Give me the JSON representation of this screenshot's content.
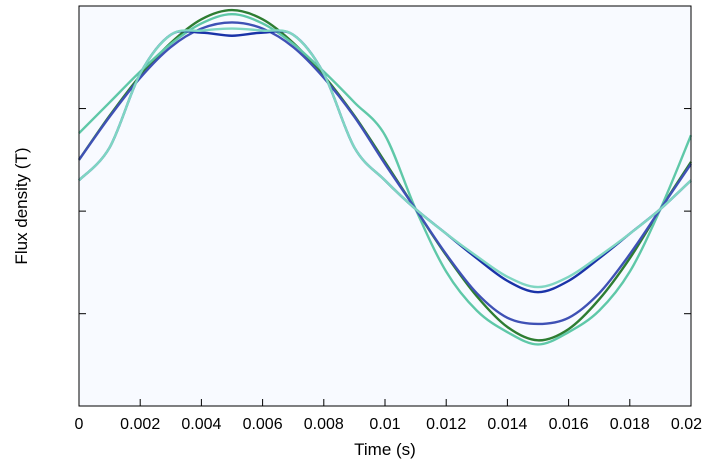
{
  "chart_data": {
    "type": "line",
    "xlabel": "Time (s)",
    "ylabel": "Flux density (T)",
    "xlim": [
      0,
      0.02
    ],
    "ylim": [
      -1.9,
      2.0
    ],
    "x_ticks": [
      {
        "value": 0,
        "label": "0"
      },
      {
        "value": 0.002,
        "label": "0.002"
      },
      {
        "value": 0.004,
        "label": "0.004"
      },
      {
        "value": 0.006,
        "label": "0.006"
      },
      {
        "value": 0.008,
        "label": "0.008"
      },
      {
        "value": 0.01,
        "label": "0.01"
      },
      {
        "value": 0.012,
        "label": "0.012"
      },
      {
        "value": 0.014,
        "label": "0.014"
      },
      {
        "value": 0.016,
        "label": "0.016"
      },
      {
        "value": 0.018,
        "label": "0.018"
      },
      {
        "value": 0.02,
        "label": "0.02"
      }
    ],
    "y_ticks_unlabeled": [
      -1,
      0,
      1
    ],
    "grid": false,
    "plot_background": "#f8faff",
    "x": [
      0,
      0.001,
      0.002,
      0.003,
      0.004,
      0.005,
      0.006,
      0.007,
      0.008,
      0.009,
      0.01,
      0.011,
      0.012,
      0.013,
      0.014,
      0.015,
      0.016,
      0.017,
      0.018,
      0.019,
      0.02
    ],
    "series": [
      {
        "color": "#2e7d32",
        "values": [
          0.5,
          0.93,
          1.32,
          1.64,
          1.87,
          1.96,
          1.87,
          1.64,
          1.32,
          0.93,
          0.48,
          0.02,
          -0.43,
          -0.83,
          -1.13,
          -1.26,
          -1.15,
          -0.86,
          -0.46,
          0.02,
          0.48
        ]
      },
      {
        "color": "#5fc8a8",
        "values": [
          0.76,
          1.06,
          1.36,
          1.63,
          1.83,
          1.92,
          1.83,
          1.63,
          1.36,
          1.06,
          0.74,
          0.02,
          -0.59,
          -0.97,
          -1.18,
          -1.3,
          -1.18,
          -0.97,
          -0.59,
          0.02,
          0.74
        ]
      },
      {
        "color": "#3f51b5",
        "values": [
          0.5,
          0.92,
          1.3,
          1.6,
          1.78,
          1.84,
          1.78,
          1.6,
          1.3,
          0.92,
          0.46,
          0.02,
          -0.42,
          -0.8,
          -1.04,
          -1.1,
          -1.04,
          -0.8,
          -0.42,
          0.02,
          0.46
        ]
      },
      {
        "color": "#1a33a8",
        "values": [
          0.3,
          0.62,
          1.34,
          1.72,
          1.74,
          1.71,
          1.74,
          1.72,
          1.34,
          0.62,
          0.3,
          0.02,
          -0.22,
          -0.46,
          -0.68,
          -0.79,
          -0.68,
          -0.46,
          -0.22,
          0.02,
          0.3
        ]
      },
      {
        "color": "#7fd6c2",
        "values": [
          0.3,
          0.62,
          1.34,
          1.72,
          1.76,
          1.78,
          1.76,
          1.72,
          1.34,
          0.62,
          0.3,
          0.02,
          -0.22,
          -0.44,
          -0.64,
          -0.74,
          -0.64,
          -0.44,
          -0.22,
          0.02,
          0.3
        ]
      }
    ]
  }
}
